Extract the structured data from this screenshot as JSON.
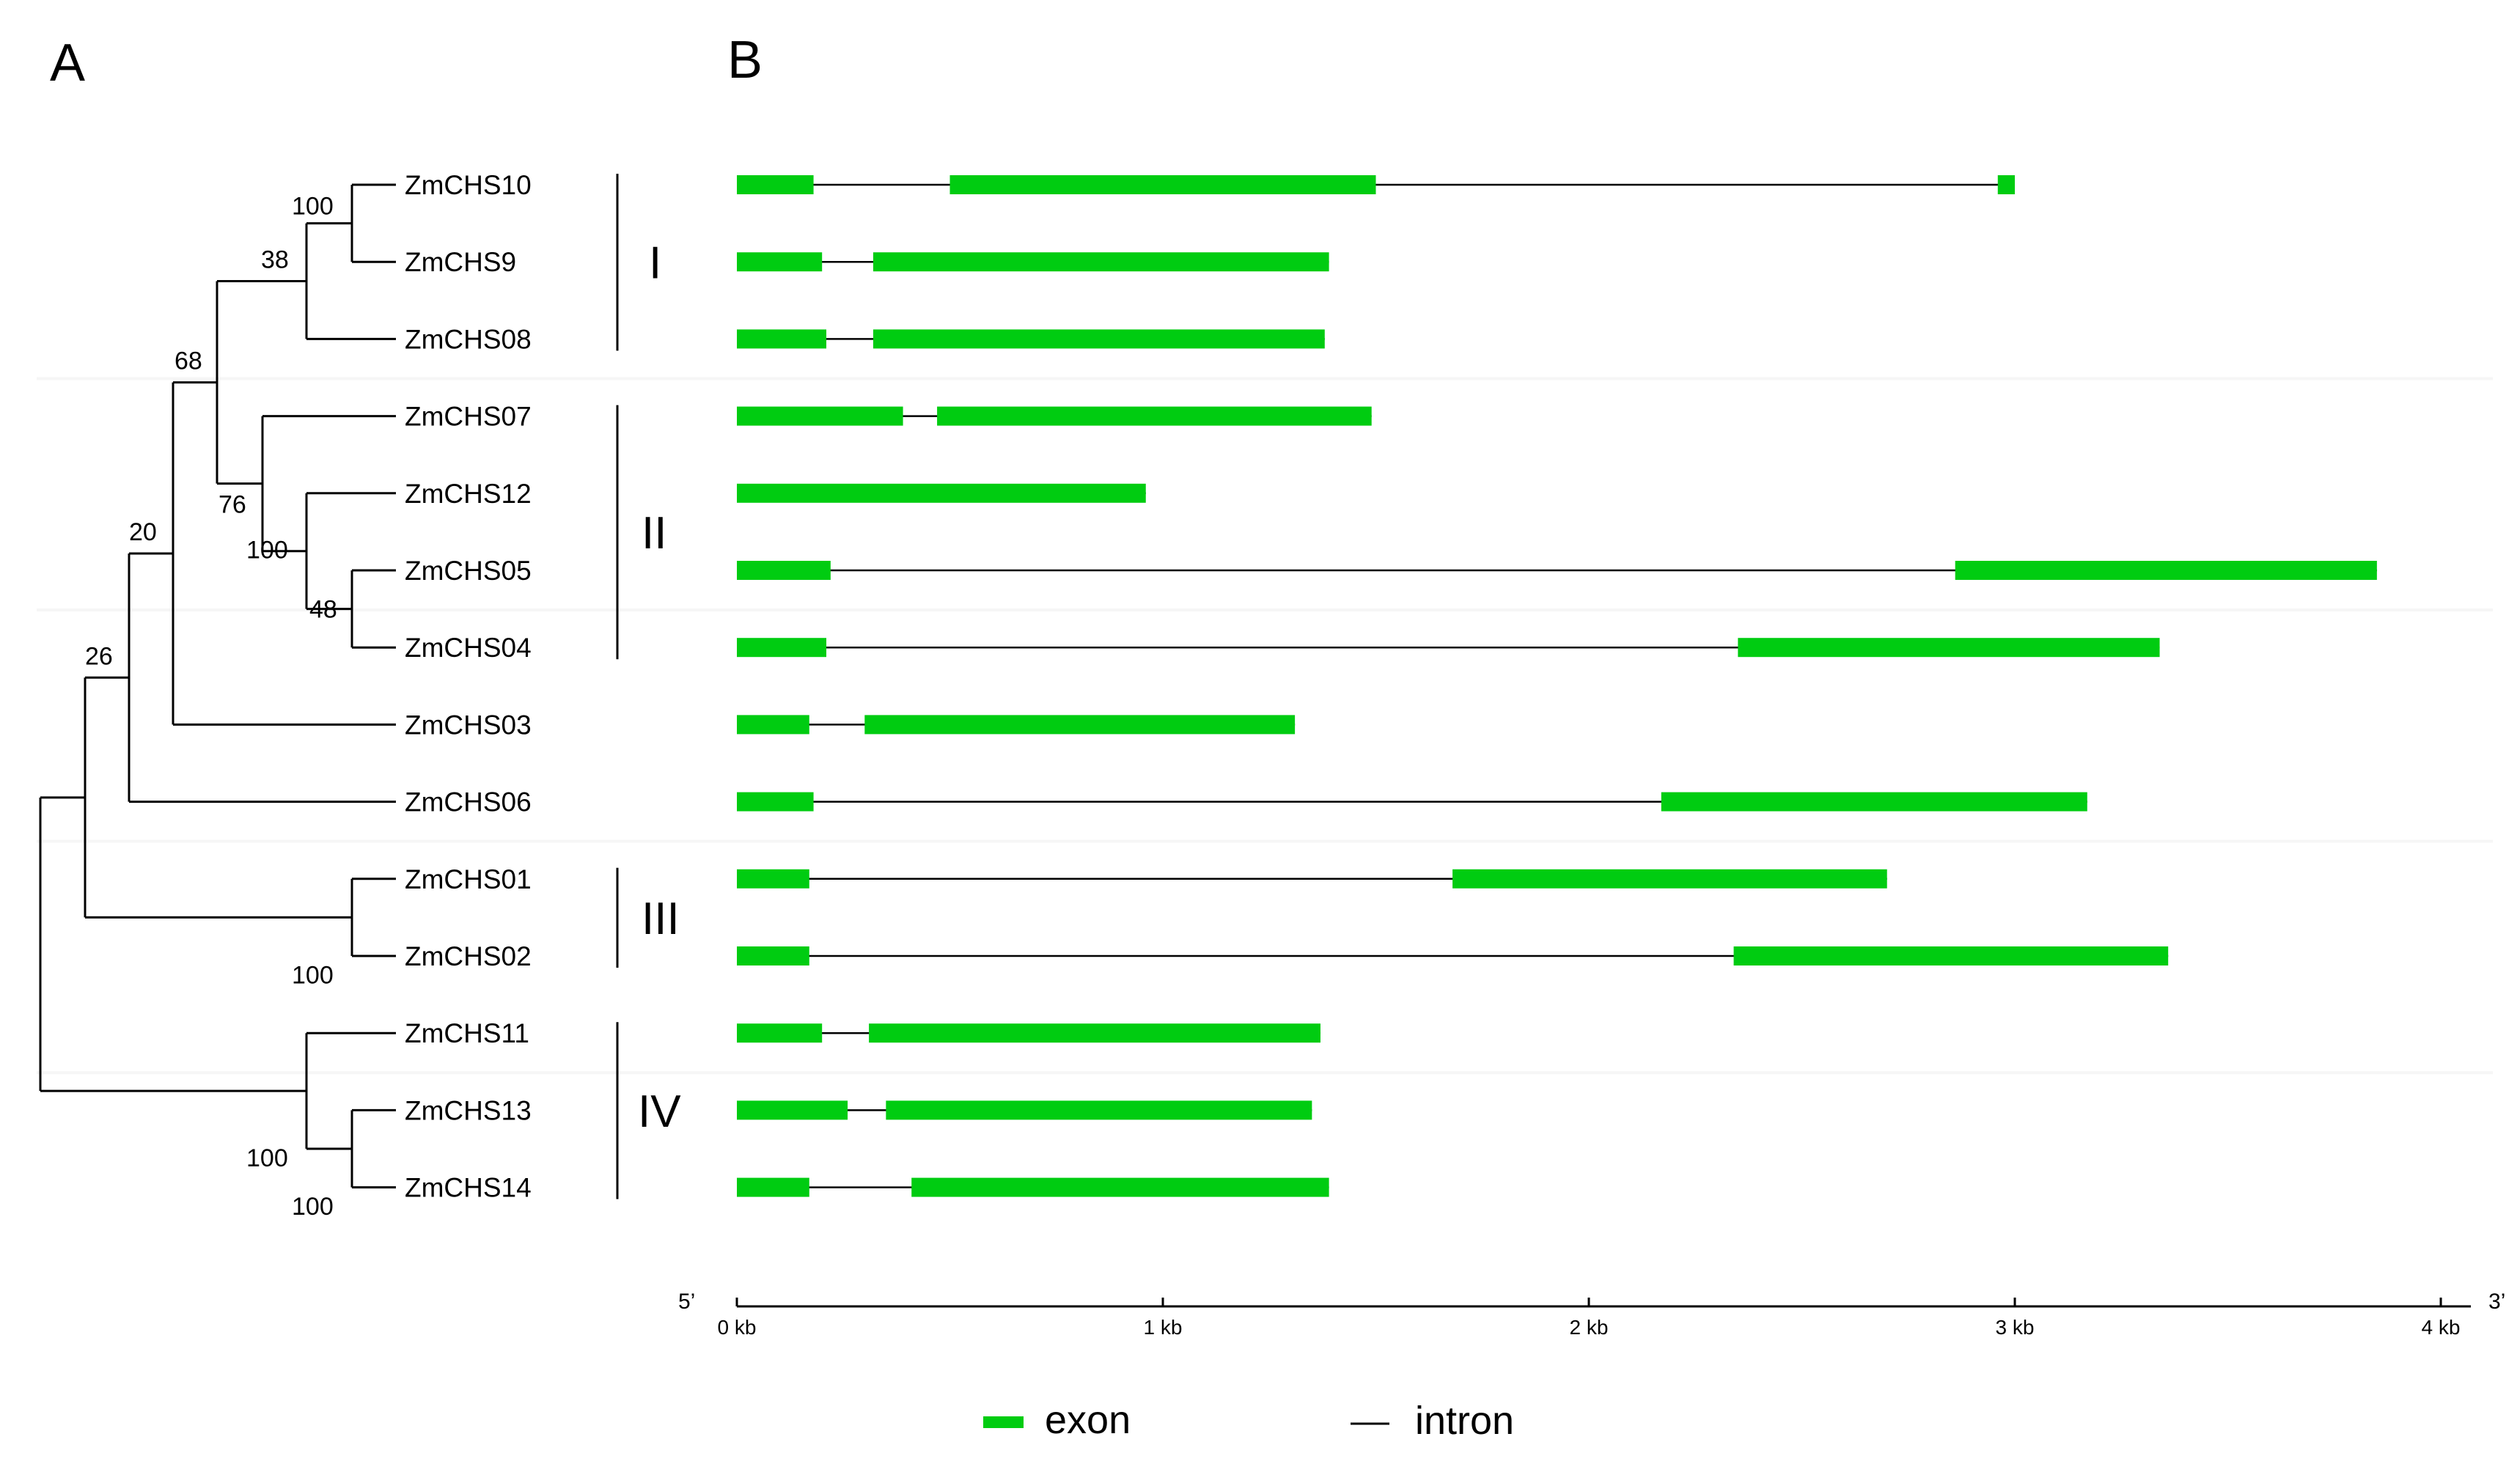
{
  "panels": {
    "A": "A",
    "B": "B"
  },
  "colors": {
    "exon": "#00cc11",
    "line": "#000000",
    "row_band": "#f6f6f6"
  },
  "tree": {
    "leaves": [
      "ZmCHS10",
      "ZmCHS9",
      "ZmCHS08",
      "ZmCHS07",
      "ZmCHS12",
      "ZmCHS05",
      "ZmCHS04",
      "ZmCHS03",
      "ZmCHS06",
      "ZmCHS01",
      "ZmCHS02",
      "ZmCHS11",
      "ZmCHS13",
      "ZmCHS14"
    ],
    "nodes": [
      {
        "id": "n10_9",
        "children": [
          "ZmCHS10",
          "ZmCHS9"
        ],
        "support": "100"
      },
      {
        "id": "n38",
        "children": [
          "n10_9",
          "ZmCHS08"
        ],
        "support": "38"
      },
      {
        "id": "n05_04",
        "children": [
          "ZmCHS05",
          "ZmCHS04"
        ],
        "support": "48"
      },
      {
        "id": "n12",
        "children": [
          "ZmCHS12",
          "n05_04"
        ],
        "support": "100"
      },
      {
        "id": "n76",
        "children": [
          "ZmCHS07",
          "n12"
        ],
        "support": "76"
      },
      {
        "id": "n68",
        "children": [
          "n38",
          "n76"
        ],
        "support": "68"
      },
      {
        "id": "n20",
        "children": [
          "n68",
          "ZmCHS03"
        ],
        "support": "20"
      },
      {
        "id": "n26",
        "children": [
          "n20",
          "ZmCHS06"
        ],
        "support": "26"
      },
      {
        "id": "n01_02",
        "children": [
          "ZmCHS01",
          "ZmCHS02"
        ],
        "support": "100"
      },
      {
        "id": "n_mid",
        "children": [
          "n26",
          "n01_02"
        ],
        "support": ""
      },
      {
        "id": "n13_14",
        "children": [
          "ZmCHS13",
          "ZmCHS14"
        ],
        "support": "100"
      },
      {
        "id": "n11",
        "children": [
          "ZmCHS11",
          "n13_14"
        ],
        "support": "100"
      },
      {
        "id": "root",
        "children": [
          "n_mid",
          "n11"
        ],
        "support": ""
      }
    ]
  },
  "groups": [
    {
      "label": "I",
      "from": "ZmCHS10",
      "to": "ZmCHS08"
    },
    {
      "label": "II",
      "from": "ZmCHS07",
      "to": "ZmCHS04"
    },
    {
      "label": "III",
      "from": "ZmCHS01",
      "to": "ZmCHS02"
    },
    {
      "label": "IV",
      "from": "ZmCHS11",
      "to": "ZmCHS14"
    }
  ],
  "gene_structures": [
    {
      "gene": "ZmCHS10",
      "exons": [
        [
          0,
          0.18
        ],
        [
          0.5,
          1.5
        ],
        [
          2.96,
          3.0
        ]
      ]
    },
    {
      "gene": "ZmCHS9",
      "exons": [
        [
          0,
          0.2
        ],
        [
          0.32,
          1.39
        ]
      ]
    },
    {
      "gene": "ZmCHS08",
      "exons": [
        [
          0,
          0.21
        ],
        [
          0.32,
          1.38
        ]
      ]
    },
    {
      "gene": "ZmCHS07",
      "exons": [
        [
          0,
          0.39
        ],
        [
          0.47,
          1.49
        ]
      ]
    },
    {
      "gene": "ZmCHS12",
      "exons": [
        [
          0,
          0.96
        ]
      ]
    },
    {
      "gene": "ZmCHS05",
      "exons": [
        [
          0,
          0.22
        ],
        [
          2.86,
          3.85
        ]
      ]
    },
    {
      "gene": "ZmCHS04",
      "exons": [
        [
          0,
          0.21
        ],
        [
          2.35,
          3.34
        ]
      ]
    },
    {
      "gene": "ZmCHS03",
      "exons": [
        [
          0,
          0.17
        ],
        [
          0.3,
          1.31
        ]
      ]
    },
    {
      "gene": "ZmCHS06",
      "exons": [
        [
          0,
          0.18
        ],
        [
          2.17,
          3.17
        ]
      ]
    },
    {
      "gene": "ZmCHS01",
      "exons": [
        [
          0,
          0.17
        ],
        [
          1.68,
          2.7
        ]
      ]
    },
    {
      "gene": "ZmCHS02",
      "exons": [
        [
          0,
          0.17
        ],
        [
          2.34,
          3.36
        ]
      ]
    },
    {
      "gene": "ZmCHS11",
      "exons": [
        [
          0,
          0.2
        ],
        [
          0.31,
          1.37
        ]
      ]
    },
    {
      "gene": "ZmCHS13",
      "exons": [
        [
          0,
          0.26
        ],
        [
          0.35,
          1.35
        ]
      ]
    },
    {
      "gene": "ZmCHS14",
      "exons": [
        [
          0,
          0.17
        ],
        [
          0.41,
          1.39
        ]
      ]
    }
  ],
  "axis": {
    "ticks": [
      {
        "value": 0,
        "label": "0 kb"
      },
      {
        "value": 1,
        "label": "1 kb"
      },
      {
        "value": 2,
        "label": "2 kb"
      },
      {
        "value": 3,
        "label": "3 kb"
      },
      {
        "value": 4,
        "label": "4 kb"
      }
    ],
    "left_label": "5’",
    "right_label": "3’"
  },
  "legend": {
    "exon": "exon",
    "intron": "intron"
  }
}
